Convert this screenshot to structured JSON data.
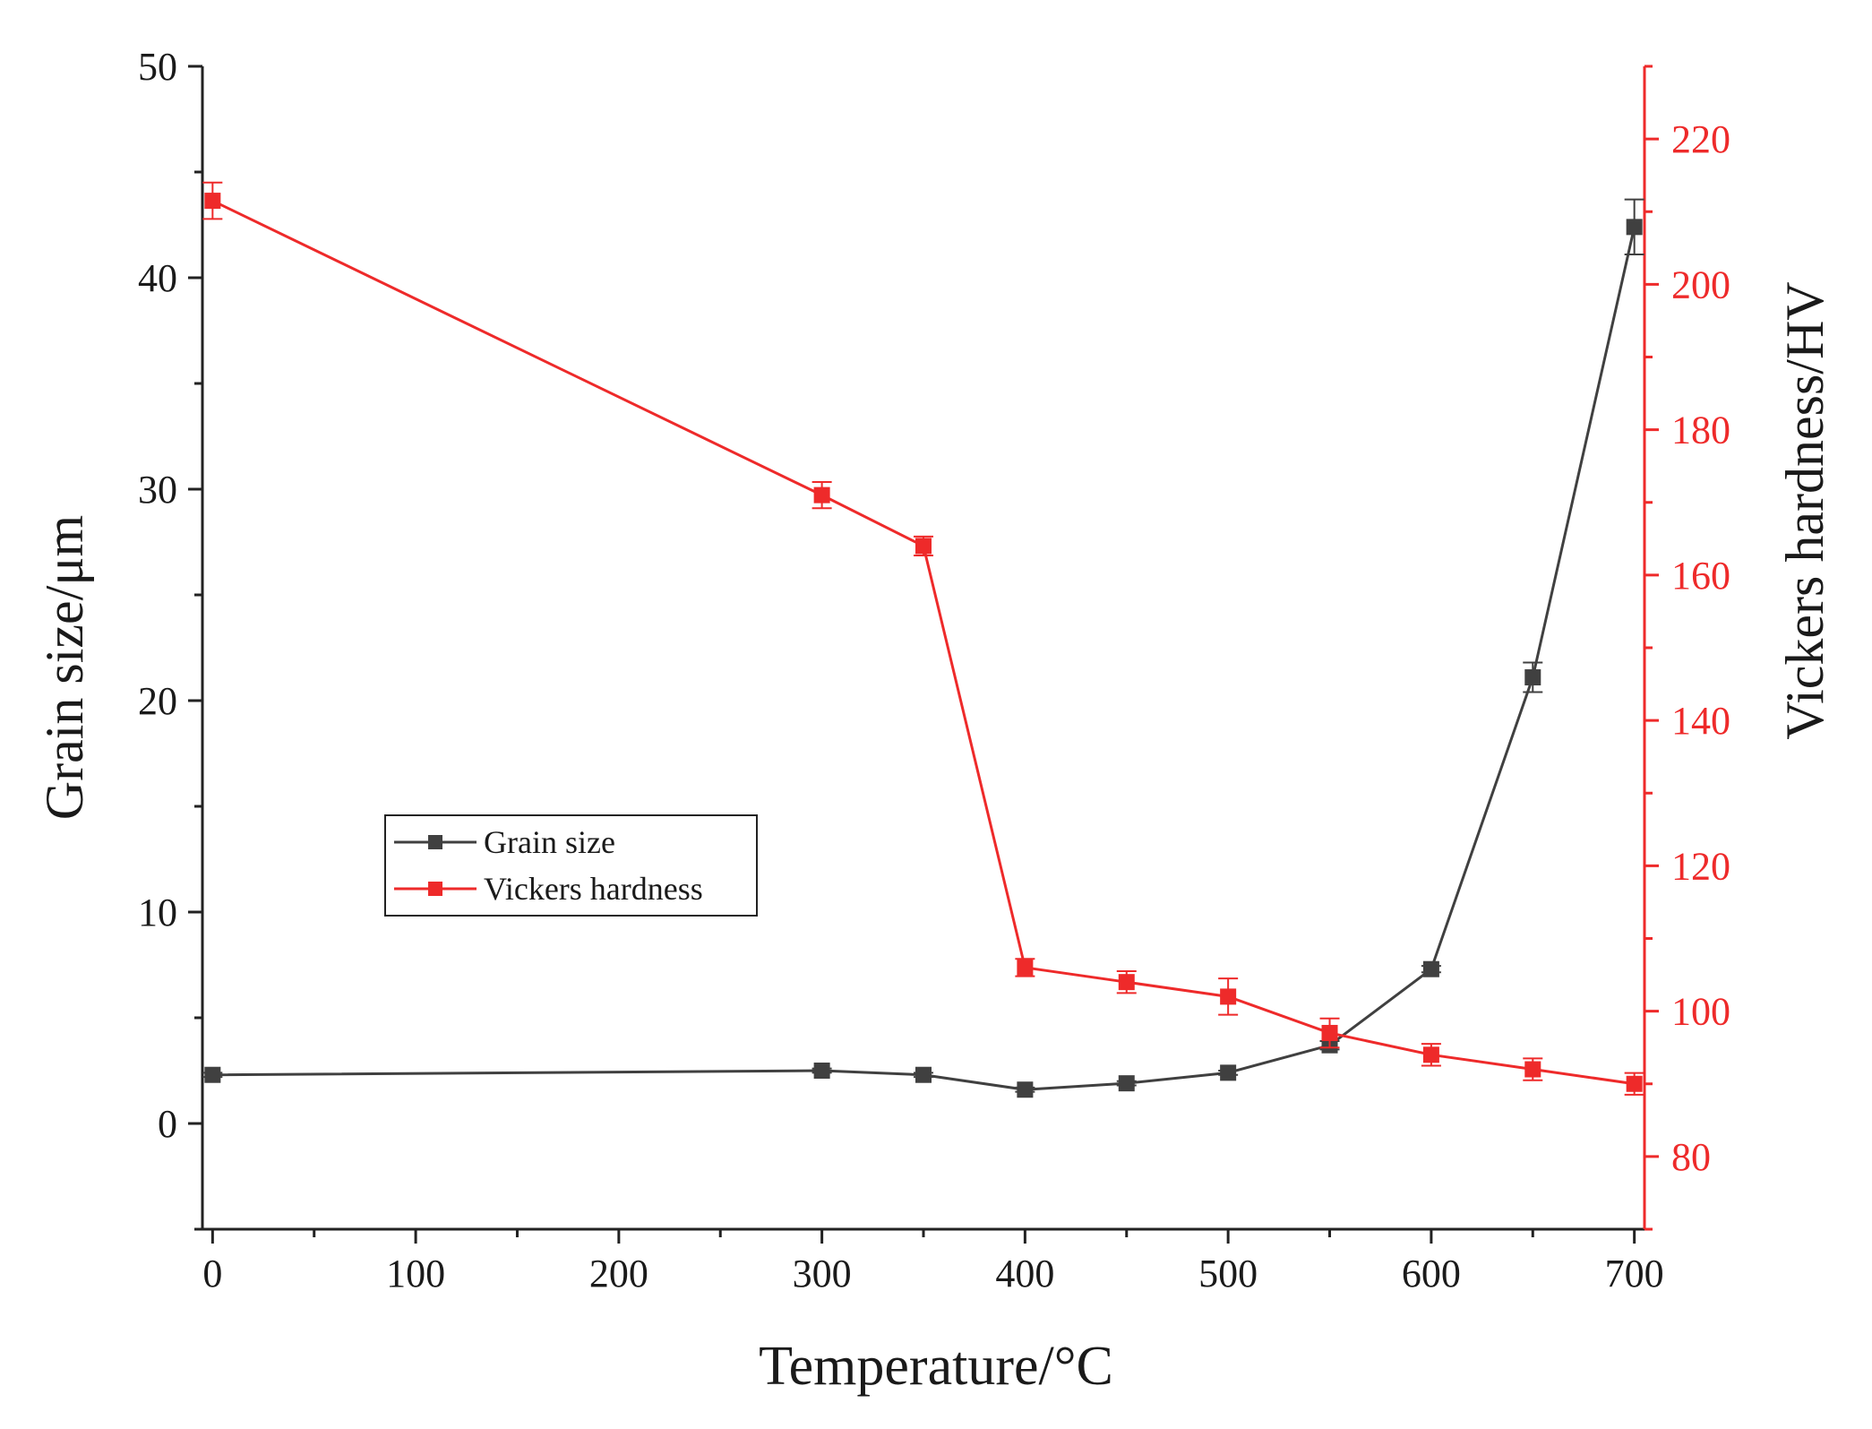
{
  "chart_data": {
    "type": "line",
    "title": "",
    "xlabel": "Temperature/°C",
    "ylabel": "Grain size/μm",
    "y2label": "Vickers hardness/HV",
    "xlim": [
      -5,
      705
    ],
    "ylim": [
      -5,
      50
    ],
    "y2lim": [
      70,
      230
    ],
    "x_ticks": [
      0,
      100,
      200,
      300,
      400,
      500,
      600,
      700
    ],
    "x_tick_labels": [
      "0",
      "100",
      "200",
      "300",
      "400",
      "500",
      "600",
      "700"
    ],
    "x_minor_ticks": [
      50,
      150,
      250,
      350,
      450,
      550,
      650
    ],
    "y_ticks": [
      0,
      10,
      20,
      30,
      40,
      50
    ],
    "y_tick_labels": [
      "0",
      "10",
      "20",
      "30",
      "40",
      "50"
    ],
    "y_minor_ticks": [
      -5,
      5,
      15,
      25,
      35,
      45
    ],
    "y2_ticks": [
      80,
      100,
      120,
      140,
      160,
      180,
      200,
      220
    ],
    "y2_tick_labels": [
      "80",
      "100",
      "120",
      "140",
      "160",
      "180",
      "200",
      "220"
    ],
    "y2_minor_ticks": [
      70,
      90,
      110,
      130,
      150,
      170,
      190,
      210,
      230
    ],
    "legend_position": "center-left",
    "series": [
      {
        "name": "Grain size",
        "axis": "left",
        "color": "#404040",
        "x": [
          0,
          300,
          350,
          400,
          450,
          500,
          550,
          600,
          650,
          700
        ],
        "values": [
          2.3,
          2.5,
          2.3,
          1.6,
          1.9,
          2.4,
          3.7,
          7.3,
          21.1,
          42.4
        ],
        "errors": [
          0.1,
          0.1,
          0.1,
          0.1,
          0.1,
          0.1,
          0.2,
          0.15,
          0.7,
          1.3
        ]
      },
      {
        "name": "Vickers hardness",
        "axis": "right",
        "color": "#ee2a2a",
        "x": [
          0,
          300,
          350,
          400,
          450,
          500,
          550,
          600,
          650,
          700
        ],
        "values": [
          211.5,
          171,
          164,
          106,
          104,
          102,
          97,
          94,
          92,
          90
        ],
        "errors": [
          2.5,
          1.8,
          1.3,
          1.2,
          1.5,
          2.5,
          2.0,
          1.5,
          1.5,
          1.5
        ]
      }
    ]
  }
}
